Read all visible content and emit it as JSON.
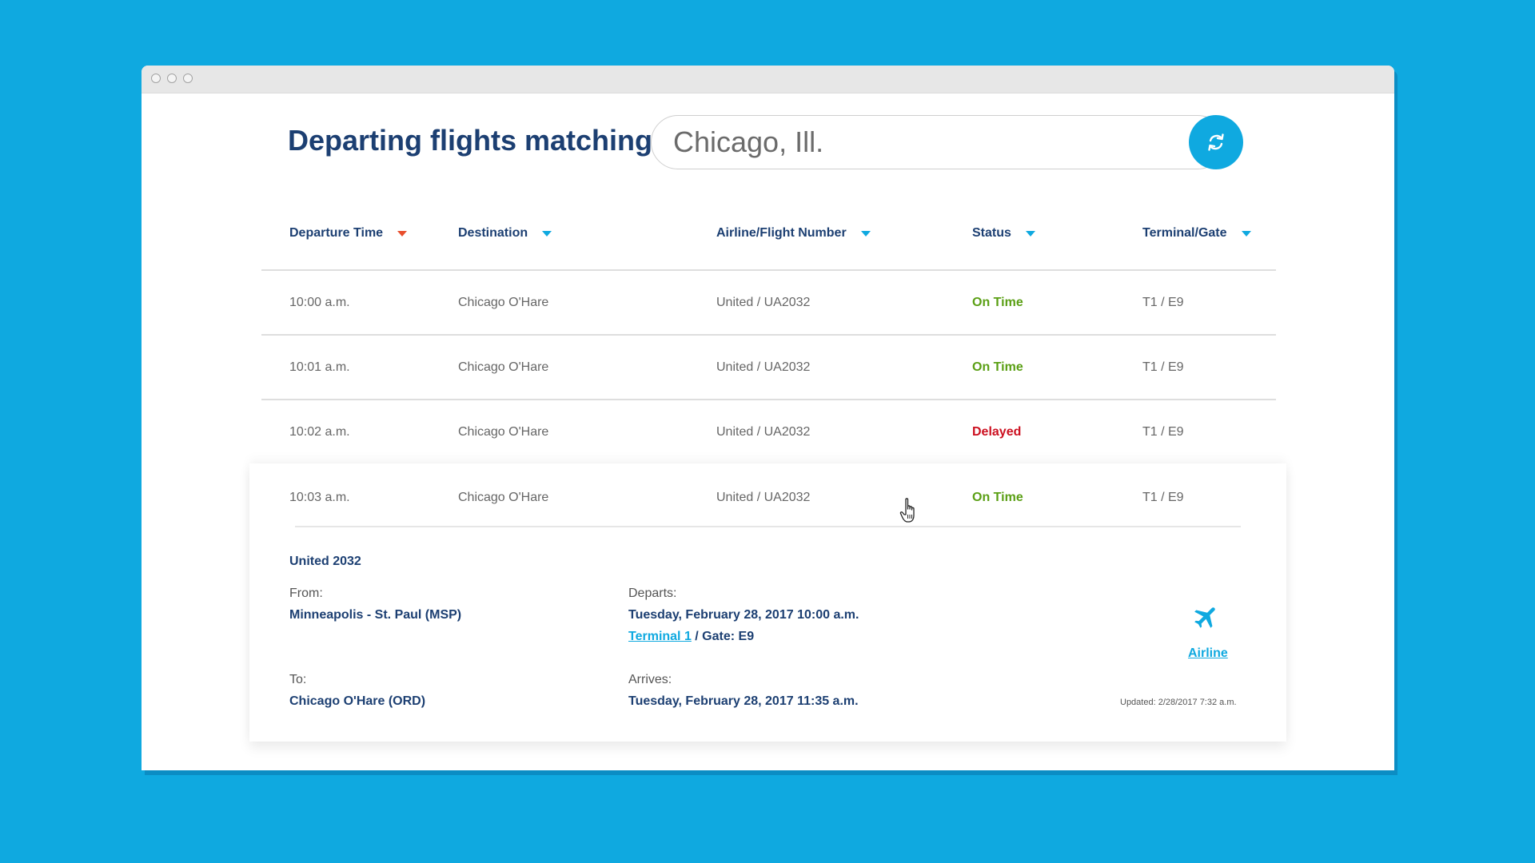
{
  "colors": {
    "background": "#0fa9e0",
    "heading": "#1c3f72",
    "on_time": "#5a9f14",
    "delayed": "#cc1020",
    "accent": "#0fa9e0",
    "sort_active": "#e84e2c"
  },
  "header": {
    "title": "Departing flights matching:",
    "search_value": "Chicago, Ill.",
    "refresh_icon": "refresh-icon"
  },
  "table": {
    "columns": [
      {
        "label": "Departure Time",
        "sort_active": true
      },
      {
        "label": "Destination",
        "sort_active": false
      },
      {
        "label": "Airline/Flight Number",
        "sort_active": false
      },
      {
        "label": "Status",
        "sort_active": false
      },
      {
        "label": "Terminal/Gate",
        "sort_active": false
      }
    ],
    "rows": [
      {
        "time": "10:00 a.m.",
        "destination": "Chicago O'Hare",
        "flight": "United / UA2032",
        "status": "On Time",
        "status_type": "on_time",
        "gate": "T1 / E9"
      },
      {
        "time": "10:01 a.m.",
        "destination": "Chicago O'Hare",
        "flight": "United / UA2032",
        "status": "On Time",
        "status_type": "on_time",
        "gate": "T1 / E9"
      },
      {
        "time": "10:02 a.m.",
        "destination": "Chicago O'Hare",
        "flight": "United / UA2032",
        "status": "Delayed",
        "status_type": "delayed",
        "gate": "T1 / E9"
      },
      {
        "time": "10:03 a.m.",
        "destination": "Chicago O'Hare",
        "flight": "United / UA2032",
        "status": "On Time",
        "status_type": "on_time",
        "gate": "T1 / E9"
      }
    ]
  },
  "details": {
    "flight_title": "United 2032",
    "from_label": "From:",
    "from_value": "Minneapolis - St. Paul (MSP)",
    "to_label": "To:",
    "to_value": "Chicago O'Hare (ORD)",
    "departs_label": "Departs:",
    "departs_value": "Tuesday, February 28, 2017 10:00 a.m.",
    "terminal_link": "Terminal 1",
    "gate_text": " / Gate: E9",
    "arrives_label": "Arrives:",
    "arrives_value": "Tuesday, February 28, 2017 11:35 a.m.",
    "airline_icon": "airplane-icon",
    "airline_link": "Airline",
    "updated": "Updated: 2/28/2017 7:32 a.m."
  }
}
